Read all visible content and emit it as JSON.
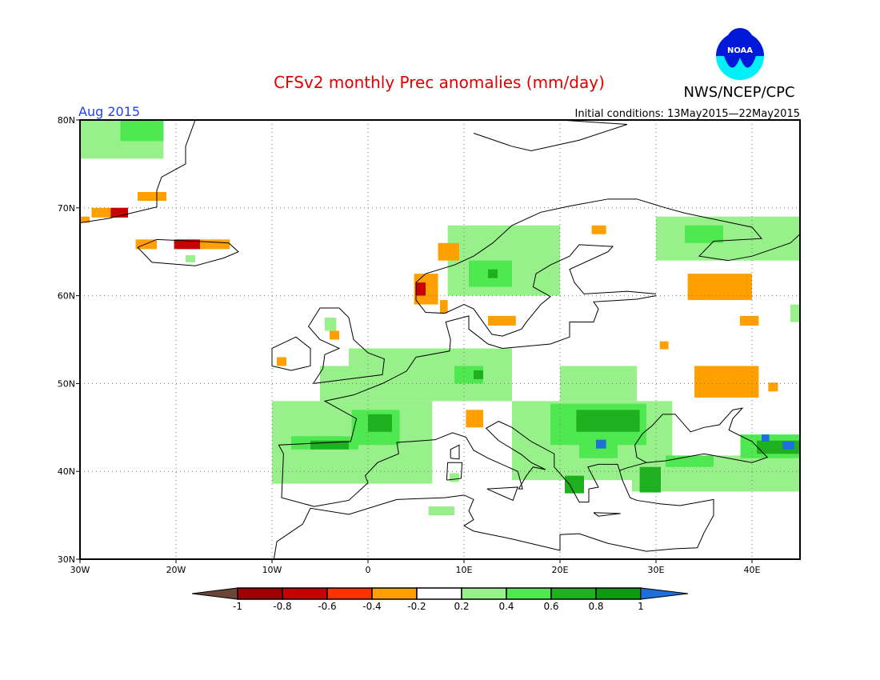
{
  "title": "CFSv2 monthly Prec anomalies (mm/day)",
  "agency": "NWS/NCEP/CPC",
  "logo_text": "NOAA",
  "valid_month": "Aug 2015",
  "initial_conditions": "Initial conditions: 13May2015—22May2015",
  "colors": {
    "title": "#e00000",
    "month": "#2040ff"
  },
  "lat_ticks": [
    "80N",
    "70N",
    "60N",
    "50N",
    "40N",
    "30N"
  ],
  "lon_ticks": [
    "30W",
    "20W",
    "10W",
    "0",
    "10E",
    "20E",
    "30E",
    "40E"
  ],
  "map_extent": {
    "lon": [
      -30,
      45
    ],
    "lat": [
      30,
      80
    ]
  },
  "colorbar": {
    "labels": [
      "-1",
      "-0.8",
      "-0.6",
      "-0.4",
      "-0.2",
      "0.2",
      "0.4",
      "0.6",
      "0.8",
      "1"
    ],
    "colors": [
      "#6b4535",
      "#a00000",
      "#c80000",
      "#ff3300",
      "#ffa000",
      "#ffffff",
      "#98f08a",
      "#50e850",
      "#1fb020",
      "#0d9a10",
      "#1e6fdb"
    ]
  },
  "anomaly_cells": [
    {
      "lon": [
        -30,
        -21.3
      ],
      "lat": [
        75.6,
        80
      ],
      "v": 0.3
    },
    {
      "lon": [
        -25.8,
        -21.3
      ],
      "lat": [
        77.6,
        80
      ],
      "v": 0.5
    },
    {
      "lon": [
        -24,
        -21
      ],
      "lat": [
        70.8,
        71.8
      ],
      "v": -0.3
    },
    {
      "lon": [
        -28.8,
        -25
      ],
      "lat": [
        68.9,
        70
      ],
      "v": -0.3
    },
    {
      "lon": [
        -26.8,
        -25
      ],
      "lat": [
        68.9,
        70
      ],
      "v": -0.7
    },
    {
      "lon": [
        -30,
        -29
      ],
      "lat": [
        68.3,
        69
      ],
      "v": -0.3
    },
    {
      "lon": [
        -24.2,
        -22
      ],
      "lat": [
        65.3,
        66.4
      ],
      "v": -0.3
    },
    {
      "lon": [
        -20.2,
        -17.5
      ],
      "lat": [
        65.3,
        66.4
      ],
      "v": -0.7
    },
    {
      "lon": [
        -17.5,
        -14.4
      ],
      "lat": [
        65.3,
        66.4
      ],
      "v": -0.3
    },
    {
      "lon": [
        -19,
        -18
      ],
      "lat": [
        63.8,
        64.6
      ],
      "v": 0.3
    },
    {
      "lon": [
        8.3,
        20
      ],
      "lat": [
        60,
        68
      ],
      "v": 0.3
    },
    {
      "lon": [
        10.5,
        15
      ],
      "lat": [
        61,
        64
      ],
      "v": 0.5
    },
    {
      "lon": [
        12.5,
        13.5
      ],
      "lat": [
        62,
        63
      ],
      "v": 0.7
    },
    {
      "lon": [
        4.8,
        7.3
      ],
      "lat": [
        59,
        62.5
      ],
      "v": -0.3
    },
    {
      "lon": [
        5,
        6
      ],
      "lat": [
        60,
        61.5
      ],
      "v": -0.7
    },
    {
      "lon": [
        7.3,
        9.5
      ],
      "lat": [
        64,
        66
      ],
      "v": -0.3
    },
    {
      "lon": [
        7.5,
        8.3
      ],
      "lat": [
        58,
        59.5
      ],
      "v": -0.3
    },
    {
      "lon": [
        30,
        45
      ],
      "lat": [
        64,
        69
      ],
      "v": 0.3
    },
    {
      "lon": [
        33,
        37
      ],
      "lat": [
        66,
        68
      ],
      "v": 0.5
    },
    {
      "lon": [
        33.3,
        40
      ],
      "lat": [
        59.5,
        62.5
      ],
      "v": -0.3
    },
    {
      "lon": [
        38.75,
        40.7
      ],
      "lat": [
        56.6,
        57.7
      ],
      "v": -0.3
    },
    {
      "lon": [
        44,
        45
      ],
      "lat": [
        57,
        59
      ],
      "v": 0.3
    },
    {
      "lon": [
        34,
        40.7
      ],
      "lat": [
        48.4,
        52
      ],
      "v": -0.3
    },
    {
      "lon": [
        41.7,
        42.7
      ],
      "lat": [
        49.1,
        50.1
      ],
      "v": -0.3
    },
    {
      "lon": [
        30.4,
        31.3
      ],
      "lat": [
        53.9,
        54.8
      ],
      "v": -0.3
    },
    {
      "lon": [
        12.5,
        15.4
      ],
      "lat": [
        56.6,
        57.7
      ],
      "v": -0.3
    },
    {
      "lon": [
        23.3,
        24.8
      ],
      "lat": [
        67,
        68
      ],
      "v": -0.3
    },
    {
      "lon": [
        -4.5,
        -3.3
      ],
      "lat": [
        56,
        57.5
      ],
      "v": 0.3
    },
    {
      "lon": [
        -9.5,
        -8.5
      ],
      "lat": [
        52,
        53
      ],
      "v": -0.3
    },
    {
      "lon": [
        -4,
        -3
      ],
      "lat": [
        55,
        56
      ],
      "v": -0.3
    },
    {
      "lon": [
        -2,
        2.5
      ],
      "lat": [
        51,
        54
      ],
      "v": 0.3
    },
    {
      "lon": [
        -5,
        15
      ],
      "lat": [
        48,
        52
      ],
      "v": 0.3
    },
    {
      "lon": [
        2.5,
        15
      ],
      "lat": [
        49,
        54
      ],
      "v": 0.3
    },
    {
      "lon": [
        9,
        12
      ],
      "lat": [
        50,
        52
      ],
      "v": 0.5
    },
    {
      "lon": [
        11,
        12
      ],
      "lat": [
        50.5,
        51.5
      ],
      "v": 0.7
    },
    {
      "lon": [
        -10,
        6.7
      ],
      "lat": [
        38.6,
        48
      ],
      "v": 0.3
    },
    {
      "lon": [
        -1.7,
        3.3
      ],
      "lat": [
        43,
        47
      ],
      "v": 0.5
    },
    {
      "lon": [
        0,
        2.5
      ],
      "lat": [
        44.5,
        46.5
      ],
      "v": 0.7
    },
    {
      "lon": [
        -8,
        -1
      ],
      "lat": [
        42.5,
        44
      ],
      "v": 0.5
    },
    {
      "lon": [
        -6,
        -2
      ],
      "lat": [
        42.5,
        43.5
      ],
      "v": 0.7
    },
    {
      "lon": [
        10.2,
        12
      ],
      "lat": [
        45,
        47
      ],
      "v": -0.3
    },
    {
      "lon": [
        15,
        31.7
      ],
      "lat": [
        39,
        48
      ],
      "v": 0.3
    },
    {
      "lon": [
        20,
        28
      ],
      "lat": [
        48,
        52
      ],
      "v": 0.3
    },
    {
      "lon": [
        19,
        29
      ],
      "lat": [
        43,
        47.7
      ],
      "v": 0.5
    },
    {
      "lon": [
        21.7,
        28.3
      ],
      "lat": [
        44.5,
        47
      ],
      "v": 0.7
    },
    {
      "lon": [
        22,
        26
      ],
      "lat": [
        41.5,
        43.5
      ],
      "v": 0.5
    },
    {
      "lon": [
        23.75,
        24.8
      ],
      "lat": [
        42.6,
        43.6
      ],
      "v": 1.1
    },
    {
      "lon": [
        20.5,
        22.5
      ],
      "lat": [
        37.5,
        39.5
      ],
      "v": 0.7
    },
    {
      "lon": [
        27.5,
        45
      ],
      "lat": [
        37.7,
        41.8
      ],
      "v": 0.3
    },
    {
      "lon": [
        31,
        36
      ],
      "lat": [
        40.5,
        41.8
      ],
      "v": 0.5
    },
    {
      "lon": [
        28.3,
        30.5
      ],
      "lat": [
        37.6,
        40.5
      ],
      "v": 0.7
    },
    {
      "lon": [
        38.8,
        45
      ],
      "lat": [
        41.5,
        44.2
      ],
      "v": 0.5
    },
    {
      "lon": [
        40.5,
        45
      ],
      "lat": [
        42,
        43.5
      ],
      "v": 0.7
    },
    {
      "lon": [
        41,
        41.8
      ],
      "lat": [
        43.4,
        44.2
      ],
      "v": 1.1
    },
    {
      "lon": [
        43.2,
        44.4
      ],
      "lat": [
        42.5,
        43.4
      ],
      "v": 1.1
    },
    {
      "lon": [
        6.3,
        9
      ],
      "lat": [
        35,
        36
      ],
      "v": 0.3
    },
    {
      "lon": [
        8.5,
        9.5
      ],
      "lat": [
        38.8,
        39.8
      ],
      "v": 0.3
    }
  ]
}
